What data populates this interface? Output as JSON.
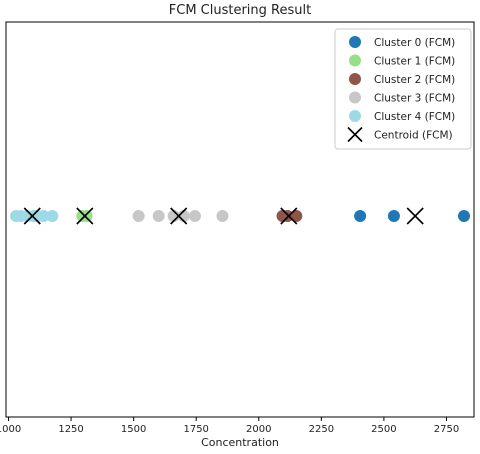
{
  "chart_data": {
    "type": "scatter",
    "title": "FCM Clustering Result",
    "xlabel": "Concentration",
    "ylabel": "",
    "xlim": [
      990,
      2860
    ],
    "xticks": [
      1000,
      1250,
      1500,
      1750,
      2000,
      2250,
      2500,
      2750
    ],
    "grid": false,
    "legend_position": "top-right",
    "series": [
      {
        "name": "Cluster 0 (FCM)",
        "color": "#1f77b4",
        "marker": "circle",
        "x": [
          2405,
          2540,
          2820
        ],
        "y": [
          0,
          0,
          0
        ]
      },
      {
        "name": "Cluster 1 (FCM)",
        "color": "#98df8a",
        "marker": "circle",
        "x": [
          1295,
          1312
        ],
        "y": [
          0,
          0
        ]
      },
      {
        "name": "Cluster 2 (FCM)",
        "color": "#8c564b",
        "marker": "circle",
        "x": [
          2095,
          2115,
          2150
        ],
        "y": [
          0,
          0,
          0
        ]
      },
      {
        "name": "Cluster 3 (FCM)",
        "color": "#c7c7c7",
        "marker": "circle",
        "x": [
          1520,
          1600,
          1660,
          1700,
          1745,
          1855
        ],
        "y": [
          0,
          0,
          0,
          0,
          0,
          0
        ]
      },
      {
        "name": "Cluster 4 (FCM)",
        "color": "#9edae5",
        "marker": "circle",
        "x": [
          1030,
          1050,
          1075,
          1100,
          1115,
          1140,
          1175
        ],
        "y": [
          0,
          0,
          0,
          0,
          0,
          0,
          0
        ]
      },
      {
        "name": "Centroid (FCM)",
        "color": "#000000",
        "marker": "x",
        "x": [
          1095,
          1305,
          1680,
          2120,
          2625
        ],
        "y": [
          0,
          0,
          0,
          0,
          0
        ]
      }
    ]
  }
}
